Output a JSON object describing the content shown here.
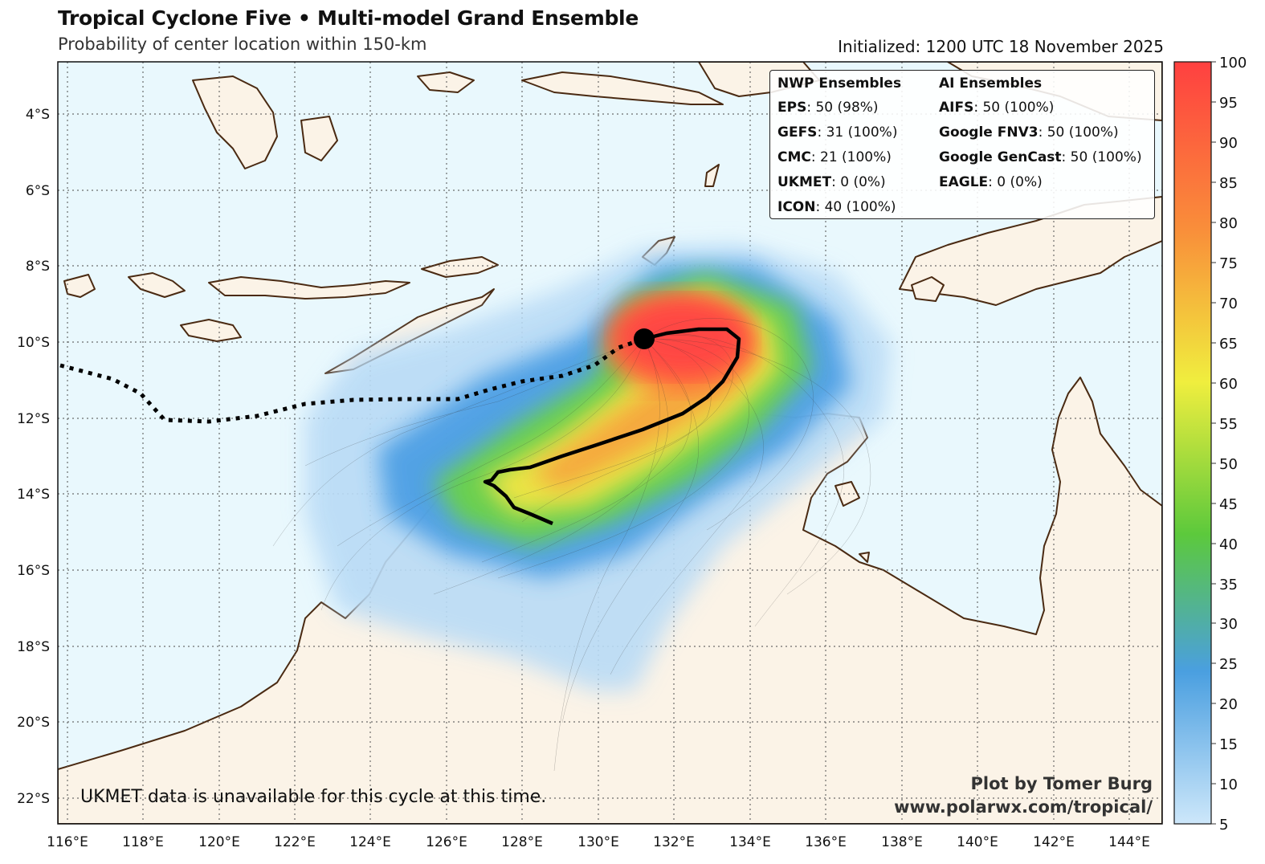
{
  "header": {
    "title": "Tropical Cyclone Five • Multi-model Grand Ensemble",
    "subtitle": "Probability of center location within 150-km",
    "initialized": "Initialized: 1200 UTC 18 November 2025"
  },
  "map": {
    "lon_range": [
      115.9,
      145.0
    ],
    "lat_range": [
      -22.6,
      -2.9
    ],
    "lon_ticks": [
      "116°E",
      "118°E",
      "120°E",
      "122°E",
      "124°E",
      "126°E",
      "128°E",
      "130°E",
      "132°E",
      "134°E",
      "136°E",
      "138°E",
      "140°E",
      "142°E",
      "144°E"
    ],
    "lat_ticks": [
      "4°S",
      "6°S",
      "8°S",
      "10°S",
      "12°S",
      "14°S",
      "16°S",
      "18°S",
      "20°S",
      "22°S"
    ],
    "storm_center": {
      "lon": 131.2,
      "lat": -9.9
    },
    "colors": {
      "ocean": "#e9f8fd",
      "land": "#fbf3e7",
      "coast": "#4a2a12",
      "track": "#000000"
    }
  },
  "legend": {
    "nwp_header": "NWP Ensembles",
    "ai_header": "AI Ensembles",
    "nwp": [
      {
        "model": "EPS",
        "value": ": 50 (98%)"
      },
      {
        "model": "GEFS",
        "value": ": 31 (100%)"
      },
      {
        "model": "CMC",
        "value": ": 21 (100%)"
      },
      {
        "model": "UKMET",
        "value": ": 0 (0%)"
      },
      {
        "model": "ICON",
        "value": ": 40 (100%)"
      }
    ],
    "ai": [
      {
        "model": "AIFS",
        "value": ": 50 (100%)"
      },
      {
        "model": "Google FNV3",
        "value": ": 50 (100%)"
      },
      {
        "model": "Google GenCast",
        "value": ": 50 (100%)"
      },
      {
        "model": "EAGLE",
        "value": ": 0 (0%)"
      }
    ]
  },
  "colorbar": {
    "labels": [
      "100",
      "95",
      "90",
      "85",
      "80",
      "75",
      "70",
      "65",
      "60",
      "55",
      "50",
      "45",
      "40",
      "35",
      "30",
      "25",
      "20",
      "15",
      "10",
      "5"
    ],
    "stops": [
      "#ff4040",
      "#f98e3a",
      "#f0ee3e",
      "#5cc93c",
      "#4a9fe0",
      "#cde7fa"
    ]
  },
  "footer": {
    "note": "UKMET data is unavailable for this cycle at this time.",
    "credit_line1": "Plot by Tomer Burg",
    "credit_line2": "www.polarwx.com/tropical/"
  }
}
